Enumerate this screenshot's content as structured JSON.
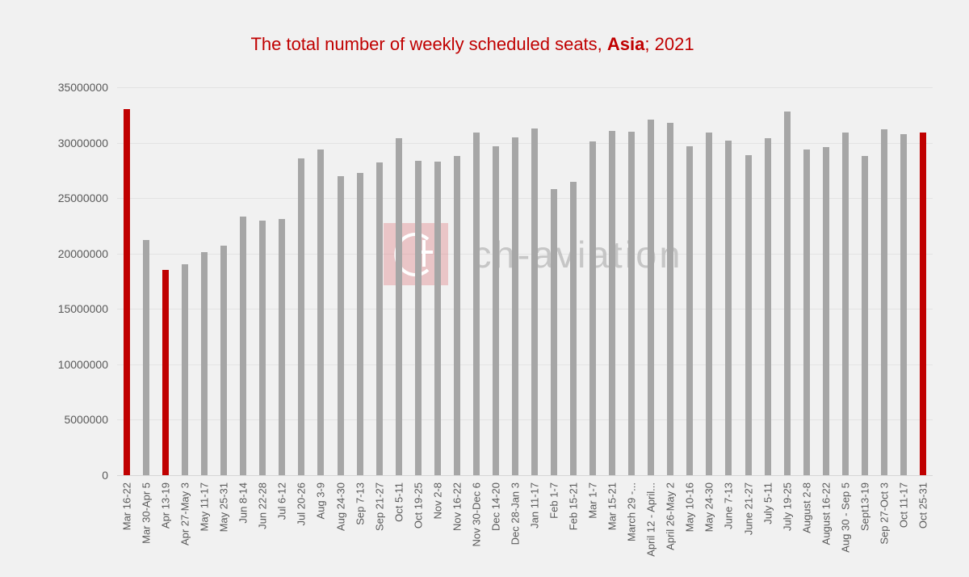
{
  "title": {
    "prefix": "The total number of weekly scheduled seats, ",
    "region": "Asia",
    "suffix": "; 2021"
  },
  "watermark": {
    "text": "ch-aviation",
    "logo_icon": "ch-aviation-logo"
  },
  "colors": {
    "background": "#f1f1f1",
    "title_text": "#c00000",
    "bar": "#a6a6a6",
    "bar_highlight": "#c00000",
    "gridline": "#e3e3e3",
    "axis_text": "#595959"
  },
  "chart_data": {
    "type": "bar",
    "title": "The total number of weekly scheduled seats, Asia; 2021",
    "xlabel": "",
    "ylabel": "",
    "ylim": [
      0,
      35000000
    ],
    "ytick_step": 5000000,
    "ytick_labels": [
      "0",
      "5000000",
      "10000000",
      "15000000",
      "20000000",
      "25000000",
      "30000000",
      "35000000"
    ],
    "grid": true,
    "legend": false,
    "categories": [
      "Mar 16-22",
      "Mar 30-Apr 5",
      "Apr 13-19",
      "Apr 27-May 3",
      "May 11-17",
      "May 25-31",
      "Jun 8-14",
      "Jun 22-28",
      "Jul 6-12",
      "Jul 20-26",
      "Aug 3-9",
      "Aug 24-30",
      "Sep 7-13",
      "Sep 21-27",
      "Oct 5-11",
      "Oct 19-25",
      "Nov 2-8",
      "Nov 16-22",
      "Nov 30-Dec 6",
      "Dec 14-20",
      "Dec 28-Jan 3",
      "Jan 11-17",
      "Feb 1-7",
      "Feb 15-21",
      "Mar 1-7",
      "Mar 15-21",
      "March 29 -...",
      "April 12 - April...",
      "April 26-May 2",
      "May 10-16",
      "May 24-30",
      "June 7-13",
      "June 21-27",
      "July 5-11",
      "July 19-25",
      "August 2-8",
      "August 16-22",
      "Aug 30 - Sep 5",
      "Sept13-19",
      "Sep 27-Oct 3",
      "Oct 11-17",
      "Oct 25-31"
    ],
    "values": [
      33000000,
      21200000,
      18500000,
      19000000,
      20100000,
      20700000,
      23300000,
      23000000,
      23100000,
      28600000,
      29400000,
      27000000,
      27300000,
      28200000,
      30400000,
      28400000,
      28300000,
      28800000,
      30900000,
      29700000,
      30500000,
      31300000,
      25800000,
      26500000,
      30100000,
      31100000,
      31000000,
      32100000,
      31800000,
      29700000,
      30900000,
      30200000,
      28900000,
      30400000,
      32800000,
      29400000,
      29600000,
      30900000,
      28800000,
      31200000,
      30800000,
      30900000
    ],
    "highlight_indices": [
      0,
      2,
      41
    ]
  }
}
